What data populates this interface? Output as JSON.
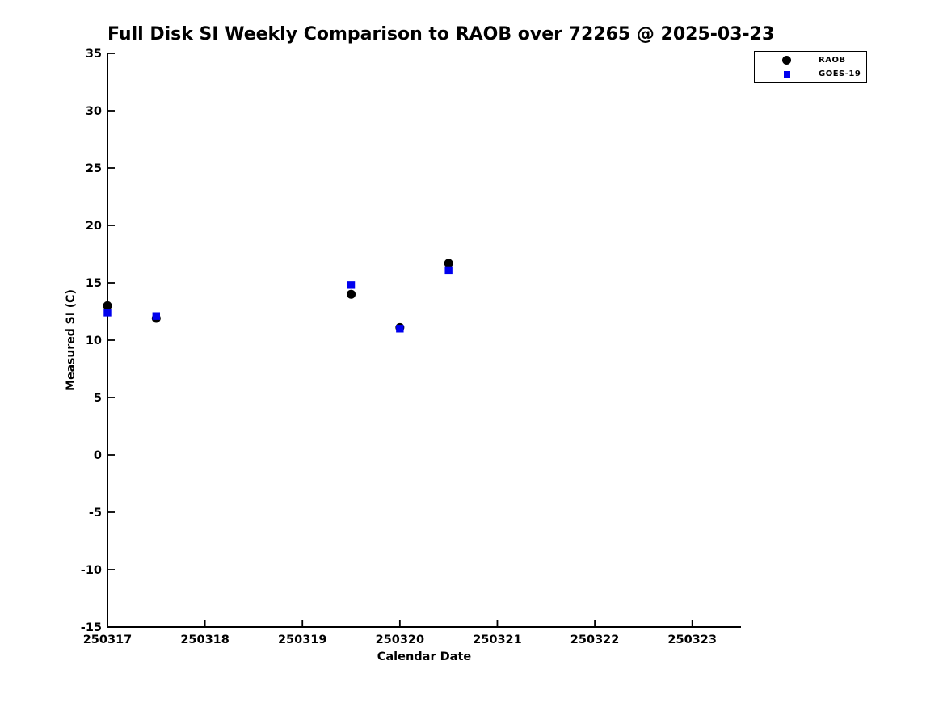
{
  "chart_data": {
    "type": "scatter",
    "title": "Full Disk SI Weekly Comparison to RAOB over 72265 @ 2025-03-23",
    "xlabel": "Calendar Date",
    "ylabel": "Measured SI (C)",
    "xlim": [
      250317,
      250323.5
    ],
    "ylim": [
      -15,
      35
    ],
    "x_ticks": [
      250317,
      250318,
      250319,
      250320,
      250321,
      250322,
      250323
    ],
    "y_ticks": [
      -15,
      -10,
      -5,
      0,
      5,
      10,
      15,
      20,
      25,
      30,
      35
    ],
    "grid": false,
    "legend_position": "upper-right-outside",
    "x": [
      250317.0,
      250317.5,
      250319.5,
      250320.0,
      250320.5
    ],
    "series": [
      {
        "name": "RAOB",
        "marker": "circle",
        "color": "#000000",
        "values": [
          13.0,
          11.9,
          14.0,
          11.1,
          16.7
        ]
      },
      {
        "name": "GOES-19",
        "marker": "square",
        "color": "#0000ee",
        "values": [
          12.4,
          12.1,
          14.8,
          11.0,
          16.1
        ]
      }
    ],
    "axis_color": "#000000",
    "background_color": "#ffffff"
  }
}
